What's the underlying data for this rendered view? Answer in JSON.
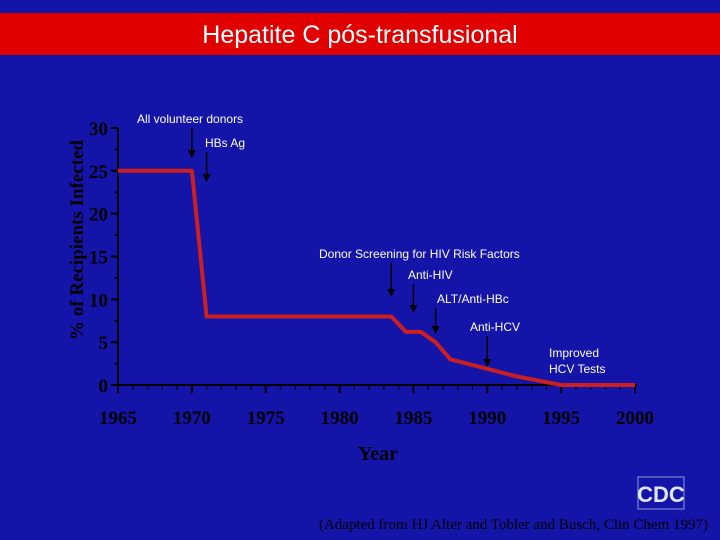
{
  "header": {
    "title": "Hepatite C pós-transfusional"
  },
  "colors": {
    "background": "#1414a8",
    "title_bar": "#e00000",
    "line": "#cc2020",
    "text": "#ffffff"
  },
  "chart_data": {
    "type": "line",
    "xlabel": "Year",
    "ylabel": "% of Recipients Infected",
    "xlim": [
      1965,
      2000
    ],
    "ylim": [
      0,
      30
    ],
    "x_ticks": [
      1965,
      1970,
      1975,
      1980,
      1985,
      1990,
      1995,
      2000
    ],
    "y_ticks": [
      0,
      5,
      10,
      15,
      20,
      25,
      30
    ],
    "series": [
      {
        "x": [
          1965,
          1970,
          1971,
          1983.5,
          1984.5,
          1985.5,
          1986.5,
          1987.5,
          1992,
          1995,
          2000
        ],
        "y": [
          25,
          25,
          8,
          8,
          6.2,
          6.2,
          5,
          3,
          1,
          0,
          0
        ]
      }
    ],
    "annotations": [
      {
        "text": "All volunteer donors",
        "x": 1970
      },
      {
        "text": "HBs Ag",
        "x": 1971
      },
      {
        "text": "Donor Screening for HIV Risk Factors",
        "x": 1983.5
      },
      {
        "text": "Anti-HIV",
        "x": 1985
      },
      {
        "text": "ALT/Anti-HBc",
        "x": 1986.5
      },
      {
        "text": "Anti-HCV",
        "x": 1990
      },
      {
        "text": "Improved HCV Tests",
        "x": 1992
      }
    ]
  },
  "footer": {
    "source": "(Adapted from HJ Alter and Tobler and Busch, Clin Chem 1997)",
    "logo": "CDC"
  }
}
